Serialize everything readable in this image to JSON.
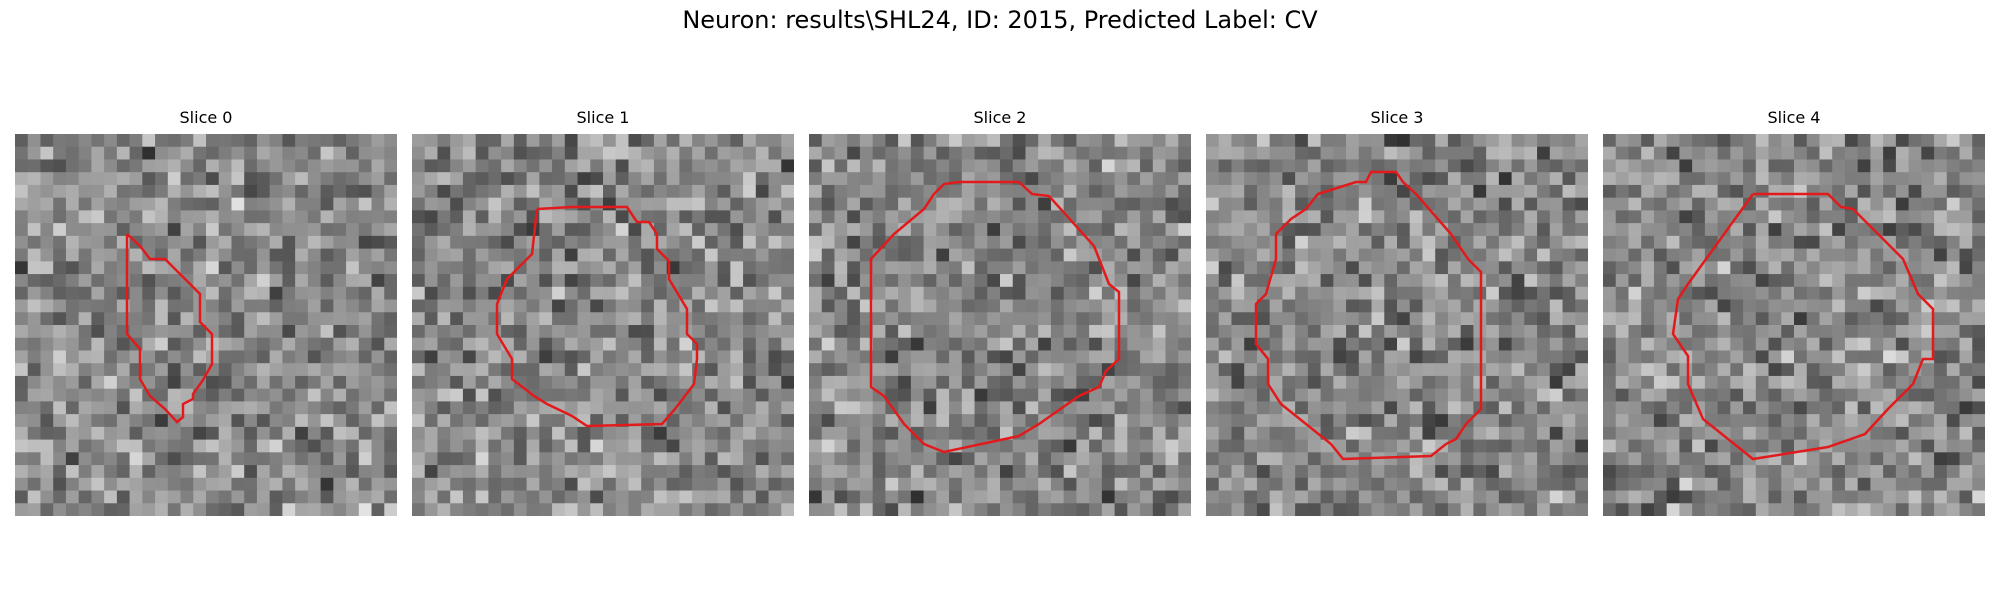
{
  "figure": {
    "title": "Neuron: results\\SHL24, ID: 2015, Predicted Label: CV",
    "contour_color": "#e31a1c"
  },
  "panels": [
    {
      "title": "Slice 0",
      "seed": 11,
      "contour": "blob"
    },
    {
      "title": "Slice 1",
      "seed": 29,
      "contour": "circle"
    },
    {
      "title": "Slice 2",
      "seed": 47,
      "contour": "circle"
    },
    {
      "title": "Slice 3",
      "seed": 83,
      "contour": "circle"
    },
    {
      "title": "Slice 4",
      "seed": 131,
      "contour": "circle"
    }
  ]
}
